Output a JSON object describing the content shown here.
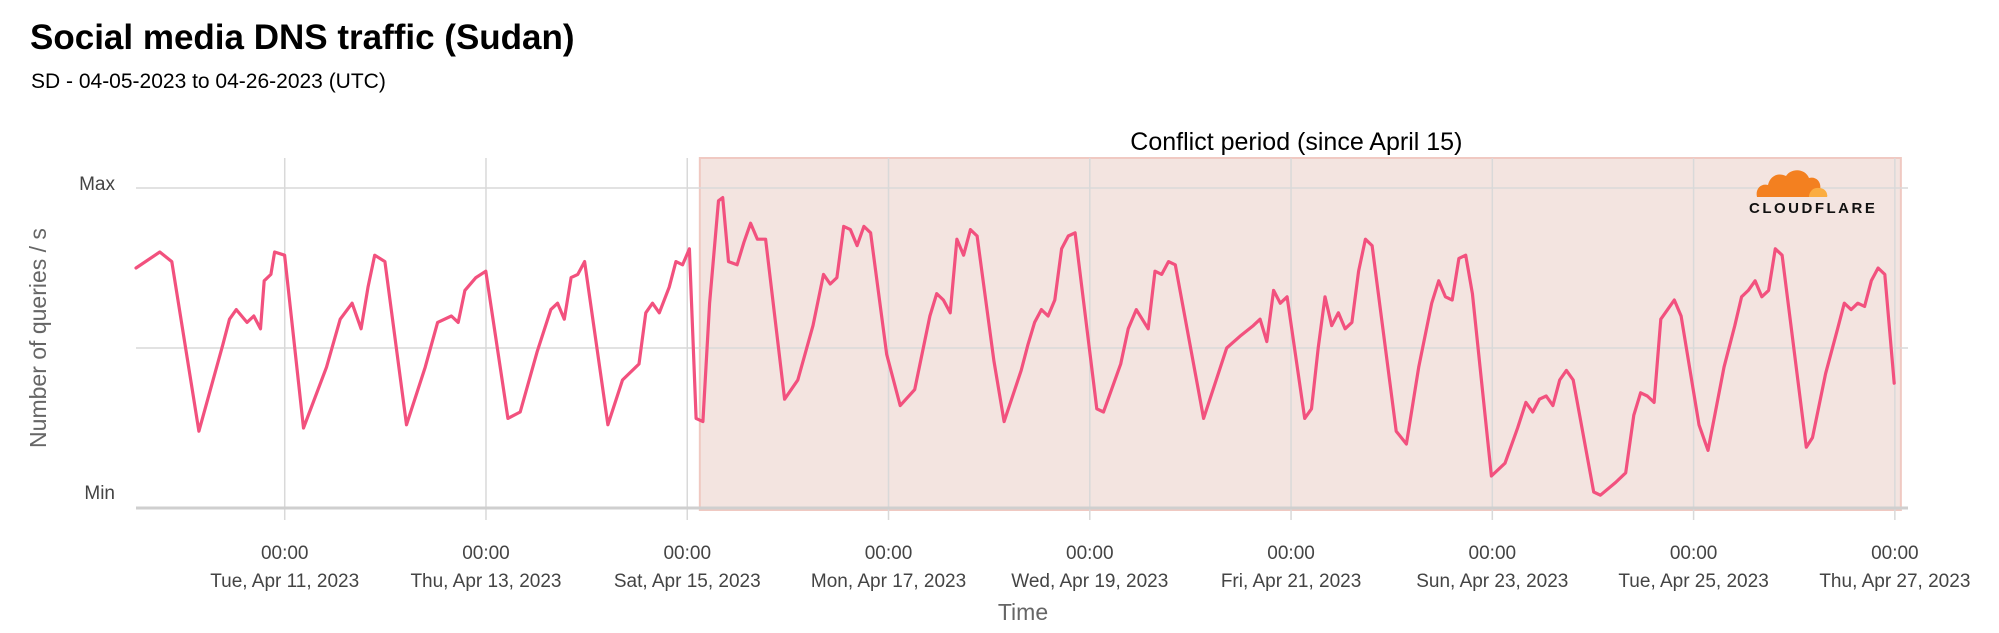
{
  "header": {
    "title": "Social media DNS traffic (Sudan)",
    "subtitle": "SD - 04-05-2023 to 04-26-2023 (UTC)"
  },
  "logo": {
    "text": "CLOUDFLARE",
    "colors": [
      "#F38020",
      "#FBAD41"
    ]
  },
  "colors": {
    "line": "#F2517E",
    "shade_fill": "#F3E4E0",
    "shade_border": "#F0C9C2",
    "grid": "#d9d9d9"
  },
  "chart_data": {
    "type": "line",
    "title": "Social media DNS traffic (Sudan)",
    "subtitle": "SD - 04-05-2023 to 04-26-2023 (UTC)",
    "xlabel": "Time",
    "ylabel": "Number of queries / s",
    "y_ticks": [
      {
        "value": 0,
        "label": "Min"
      },
      {
        "value": 1,
        "label": "Max"
      }
    ],
    "ylim": [
      0,
      1
    ],
    "xlim": [
      "2023-04-09 12:32",
      "2023-04-27 03:08"
    ],
    "x_ticks": [
      {
        "time": "2023-04-11 00:00",
        "time_label": "00:00",
        "date_label": "Tue, Apr 11, 2023"
      },
      {
        "time": "2023-04-13 00:00",
        "time_label": "00:00",
        "date_label": "Thu, Apr 13, 2023"
      },
      {
        "time": "2023-04-15 00:00",
        "time_label": "00:00",
        "date_label": "Sat, Apr 15, 2023"
      },
      {
        "time": "2023-04-17 00:00",
        "time_label": "00:00",
        "date_label": "Mon, Apr 17, 2023"
      },
      {
        "time": "2023-04-19 00:00",
        "time_label": "00:00",
        "date_label": "Wed, Apr 19, 2023"
      },
      {
        "time": "2023-04-21 00:00",
        "time_label": "00:00",
        "date_label": "Fri, Apr 21, 2023"
      },
      {
        "time": "2023-04-23 00:00",
        "time_label": "00:00",
        "date_label": "Sun, Apr 23, 2023"
      },
      {
        "time": "2023-04-25 00:00",
        "time_label": "00:00",
        "date_label": "Tue, Apr 25, 2023"
      },
      {
        "time": "2023-04-27 00:00",
        "time_label": "00:00",
        "date_label": "Thu, Apr 27, 2023"
      }
    ],
    "grid": true,
    "legend": "none",
    "annotations": [
      {
        "label": "Conflict period (since April 15)",
        "start": "2023-04-15 03:00",
        "end": "2023-04-27 00:00"
      }
    ],
    "series": [
      {
        "points": [
          [
            "2023-04-09 12:32",
            0.75
          ],
          [
            "2023-04-09 18:13",
            0.8
          ],
          [
            "2023-04-09 21:04",
            0.77
          ],
          [
            "2023-04-10 03:32",
            0.24
          ],
          [
            "2023-04-10 09:14",
            0.51
          ],
          [
            "2023-04-10 10:50",
            0.59
          ],
          [
            "2023-04-10 12:27",
            0.62
          ],
          [
            "2023-04-10 15:01",
            0.58
          ],
          [
            "2023-04-10 16:37",
            0.6
          ],
          [
            "2023-04-10 18:14",
            0.56
          ],
          [
            "2023-04-10 19:06",
            0.71
          ],
          [
            "2023-04-10 20:42",
            0.73
          ],
          [
            "2023-04-10 21:35",
            0.8
          ],
          [
            "2023-04-10 23:59",
            0.79
          ],
          [
            "2023-04-11 04:29",
            0.25
          ],
          [
            "2023-04-11 09:58",
            0.44
          ],
          [
            "2023-04-11 13:14",
            0.59
          ],
          [
            "2023-04-11 16:04",
            0.64
          ],
          [
            "2023-04-11 18:13",
            0.56
          ],
          [
            "2023-04-11 19:52",
            0.69
          ],
          [
            "2023-04-11 21:28",
            0.79
          ],
          [
            "2023-04-11 23:54",
            0.77
          ],
          [
            "2023-04-12 05:02",
            0.26
          ],
          [
            "2023-04-12 09:30",
            0.44
          ],
          [
            "2023-04-12 12:27",
            0.58
          ],
          [
            "2023-04-12 15:45",
            0.6
          ],
          [
            "2023-04-12 17:22",
            0.58
          ],
          [
            "2023-04-12 18:58",
            0.68
          ],
          [
            "2023-04-12 21:36",
            0.72
          ],
          [
            "2023-04-12 23:57",
            0.74
          ],
          [
            "2023-04-13 05:13",
            0.28
          ],
          [
            "2023-04-13 08:09",
            0.3
          ],
          [
            "2023-04-13 12:15",
            0.49
          ],
          [
            "2023-04-13 15:28",
            0.62
          ],
          [
            "2023-04-13 17:05",
            0.64
          ],
          [
            "2023-04-13 18:41",
            0.59
          ],
          [
            "2023-04-13 20:18",
            0.72
          ],
          [
            "2023-04-13 21:54",
            0.73
          ],
          [
            "2023-04-13 23:31",
            0.77
          ],
          [
            "2023-04-14 05:05",
            0.26
          ],
          [
            "2023-04-14 08:33",
            0.4
          ],
          [
            "2023-04-14 12:30",
            0.45
          ],
          [
            "2023-04-14 14:07",
            0.61
          ],
          [
            "2023-04-14 15:43",
            0.64
          ],
          [
            "2023-04-14 17:20",
            0.61
          ],
          [
            "2023-04-14 19:41",
            0.69
          ],
          [
            "2023-04-14 21:18",
            0.77
          ],
          [
            "2023-04-14 22:54",
            0.76
          ],
          [
            "2023-04-15 00:31",
            0.81
          ],
          [
            "2023-04-15 02:07",
            0.28
          ],
          [
            "2023-04-15 03:44",
            0.27
          ],
          [
            "2023-04-15 05:20",
            0.64
          ],
          [
            "2023-04-15 07:27",
            0.96
          ],
          [
            "2023-04-15 08:27",
            0.97
          ],
          [
            "2023-04-15 09:50",
            0.77
          ],
          [
            "2023-04-15 11:54",
            0.76
          ],
          [
            "2023-04-15 13:31",
            0.83
          ],
          [
            "2023-04-15 15:07",
            0.89
          ],
          [
            "2023-04-15 16:44",
            0.84
          ],
          [
            "2023-04-15 18:41",
            0.84
          ],
          [
            "2023-04-15 23:13",
            0.34
          ],
          [
            "2023-04-16 02:22",
            0.4
          ],
          [
            "2023-04-16 05:59",
            0.57
          ],
          [
            "2023-04-16 08:29",
            0.73
          ],
          [
            "2023-04-16 10:05",
            0.7
          ],
          [
            "2023-04-16 11:42",
            0.72
          ],
          [
            "2023-04-16 13:18",
            0.88
          ],
          [
            "2023-04-16 14:55",
            0.87
          ],
          [
            "2023-04-16 16:31",
            0.82
          ],
          [
            "2023-04-16 18:08",
            0.88
          ],
          [
            "2023-04-16 19:44",
            0.86
          ],
          [
            "2023-04-16 23:34",
            0.48
          ],
          [
            "2023-04-17 02:47",
            0.32
          ],
          [
            "2023-04-17 06:15",
            0.37
          ],
          [
            "2023-04-17 09:52",
            0.6
          ],
          [
            "2023-04-17 11:29",
            0.67
          ],
          [
            "2023-04-17 13:05",
            0.65
          ],
          [
            "2023-04-17 14:42",
            0.61
          ],
          [
            "2023-04-17 16:18",
            0.84
          ],
          [
            "2023-04-17 17:55",
            0.79
          ],
          [
            "2023-04-17 19:31",
            0.87
          ],
          [
            "2023-04-17 21:08",
            0.85
          ],
          [
            "2023-04-18 01:08",
            0.46
          ],
          [
            "2023-04-18 03:34",
            0.27
          ],
          [
            "2023-04-18 07:38",
            0.43
          ],
          [
            "2023-04-18 09:14",
            0.51
          ],
          [
            "2023-04-18 10:51",
            0.58
          ],
          [
            "2023-04-18 12:27",
            0.62
          ],
          [
            "2023-04-18 14:04",
            0.6
          ],
          [
            "2023-04-18 15:40",
            0.65
          ],
          [
            "2023-04-18 17:17",
            0.81
          ],
          [
            "2023-04-18 18:53",
            0.85
          ],
          [
            "2023-04-18 20:30",
            0.86
          ],
          [
            "2023-04-19 01:40",
            0.31
          ],
          [
            "2023-04-19 03:16",
            0.3
          ],
          [
            "2023-04-19 07:23",
            0.45
          ],
          [
            "2023-04-19 09:10",
            0.56
          ],
          [
            "2023-04-19 11:05",
            0.62
          ],
          [
            "2023-04-19 13:56",
            0.56
          ],
          [
            "2023-04-19 15:33",
            0.74
          ],
          [
            "2023-04-19 17:09",
            0.73
          ],
          [
            "2023-04-19 18:46",
            0.77
          ],
          [
            "2023-04-19 20:23",
            0.76
          ],
          [
            "2023-04-20 03:09",
            0.28
          ],
          [
            "2023-04-20 08:39",
            0.5
          ],
          [
            "2023-04-20 12:07",
            0.54
          ],
          [
            "2023-04-20 15:00",
            0.57
          ],
          [
            "2023-04-20 16:37",
            0.59
          ],
          [
            "2023-04-20 18:13",
            0.52
          ],
          [
            "2023-04-20 19:50",
            0.68
          ],
          [
            "2023-04-20 21:26",
            0.64
          ],
          [
            "2023-04-20 23:03",
            0.66
          ],
          [
            "2023-04-21 03:15",
            0.28
          ],
          [
            "2023-04-21 04:52",
            0.31
          ],
          [
            "2023-04-21 06:28",
            0.5
          ],
          [
            "2023-04-21 08:05",
            0.66
          ],
          [
            "2023-04-21 09:41",
            0.57
          ],
          [
            "2023-04-21 11:18",
            0.61
          ],
          [
            "2023-04-21 12:54",
            0.56
          ],
          [
            "2023-04-21 14:31",
            0.58
          ],
          [
            "2023-04-21 16:07",
            0.74
          ],
          [
            "2023-04-21 17:44",
            0.84
          ],
          [
            "2023-04-21 19:20",
            0.82
          ],
          [
            "2023-04-22 01:05",
            0.24
          ],
          [
            "2023-04-22 03:31",
            0.2
          ],
          [
            "2023-04-22 06:26",
            0.44
          ],
          [
            "2023-04-22 09:32",
            0.64
          ],
          [
            "2023-04-22 11:13",
            0.71
          ],
          [
            "2023-04-22 12:49",
            0.66
          ],
          [
            "2023-04-22 14:26",
            0.65
          ],
          [
            "2023-04-22 16:02",
            0.78
          ],
          [
            "2023-04-22 17:39",
            0.79
          ],
          [
            "2023-04-22 19:15",
            0.67
          ],
          [
            "2023-04-22 23:47",
            0.1
          ],
          [
            "2023-04-23 03:02",
            0.14
          ],
          [
            "2023-04-23 06:02",
            0.25
          ],
          [
            "2023-04-23 08:01",
            0.33
          ],
          [
            "2023-04-23 09:38",
            0.3
          ],
          [
            "2023-04-23 11:14",
            0.34
          ],
          [
            "2023-04-23 12:51",
            0.35
          ],
          [
            "2023-04-23 14:27",
            0.32
          ],
          [
            "2023-04-23 16:04",
            0.4
          ],
          [
            "2023-04-23 17:40",
            0.43
          ],
          [
            "2023-04-23 19:17",
            0.4
          ],
          [
            "2023-04-24 00:10",
            0.05
          ],
          [
            "2023-04-24 01:46",
            0.04
          ],
          [
            "2023-04-24 05:26",
            0.08
          ],
          [
            "2023-04-24 07:49",
            0.11
          ],
          [
            "2023-04-24 09:45",
            0.29
          ],
          [
            "2023-04-24 11:22",
            0.36
          ],
          [
            "2023-04-24 12:58",
            0.35
          ],
          [
            "2023-04-24 14:35",
            0.33
          ],
          [
            "2023-04-24 16:11",
            0.59
          ],
          [
            "2023-04-24 17:48",
            0.62
          ],
          [
            "2023-04-24 19:24",
            0.65
          ],
          [
            "2023-04-24 21:01",
            0.6
          ],
          [
            "2023-04-25 01:18",
            0.26
          ],
          [
            "2023-04-25 03:26",
            0.18
          ],
          [
            "2023-04-25 07:15",
            0.44
          ],
          [
            "2023-04-25 09:49",
            0.57
          ],
          [
            "2023-04-25 11:27",
            0.66
          ],
          [
            "2023-04-25 13:03",
            0.68
          ],
          [
            "2023-04-25 14:40",
            0.71
          ],
          [
            "2023-04-25 16:16",
            0.66
          ],
          [
            "2023-04-25 17:53",
            0.68
          ],
          [
            "2023-04-25 19:29",
            0.81
          ],
          [
            "2023-04-25 21:06",
            0.79
          ],
          [
            "2023-04-26 02:53",
            0.19
          ],
          [
            "2023-04-26 04:21",
            0.22
          ],
          [
            "2023-04-26 07:29",
            0.42
          ],
          [
            "2023-04-26 10:21",
            0.56
          ],
          [
            "2023-04-26 11:57",
            0.64
          ],
          [
            "2023-04-26 13:34",
            0.62
          ],
          [
            "2023-04-26 15:10",
            0.64
          ],
          [
            "2023-04-26 16:47",
            0.63
          ],
          [
            "2023-04-26 18:23",
            0.71
          ],
          [
            "2023-04-26 20:00",
            0.75
          ],
          [
            "2023-04-26 21:36",
            0.73
          ],
          [
            "2023-04-26 23:51",
            0.39
          ]
        ]
      }
    ]
  }
}
